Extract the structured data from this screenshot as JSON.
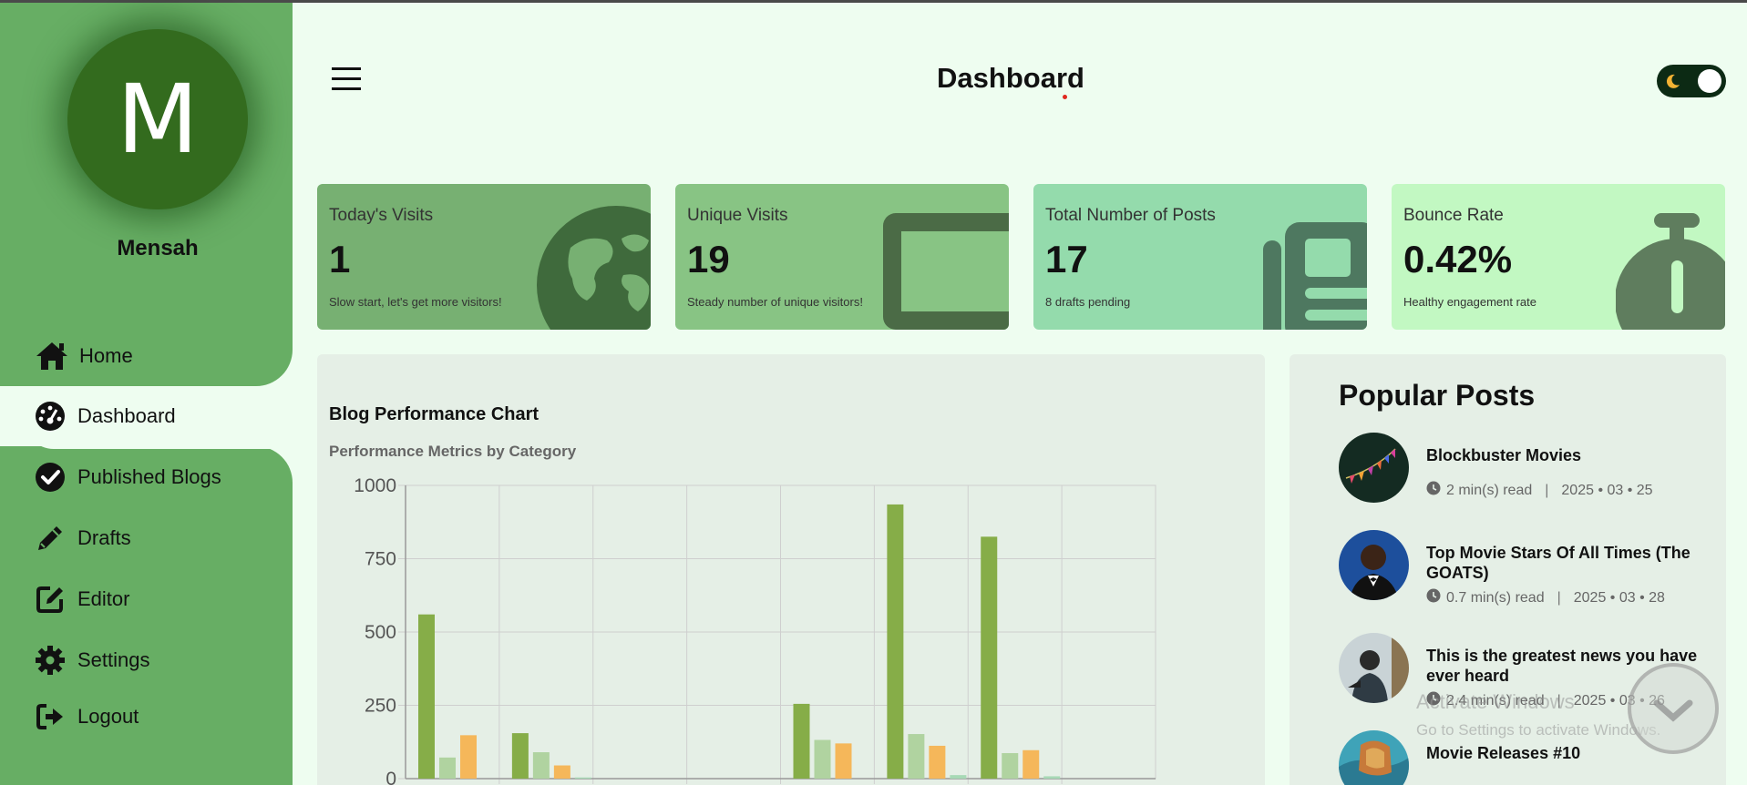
{
  "user": {
    "initial": "M",
    "name": "Mensah"
  },
  "nav": [
    {
      "label": "Home",
      "icon": "home-icon"
    },
    {
      "label": "Dashboard",
      "icon": "dashboard-gauge-icon",
      "active": true
    },
    {
      "label": "Published Blogs",
      "icon": "check-circle-icon"
    },
    {
      "label": "Drafts",
      "icon": "pencil-icon"
    },
    {
      "label": "Editor",
      "icon": "edit-square-icon"
    },
    {
      "label": "Settings",
      "icon": "gear-icon"
    },
    {
      "label": "Logout",
      "icon": "logout-icon"
    }
  ],
  "header": {
    "title": "Dashboard",
    "theme_toggle": "dark-mode-toggle"
  },
  "cards": [
    {
      "label": "Today's Visits",
      "value": "1",
      "note": "Slow start, let's get more visitors!",
      "icon": "globe-icon",
      "color": "#77b072"
    },
    {
      "label": "Unique Visits",
      "value": "19",
      "note": "Steady number of unique visitors!",
      "icon": "tablet-icon",
      "color": "#88c484"
    },
    {
      "label": "Total Number of Posts",
      "value": "17",
      "note": "8 drafts pending",
      "icon": "newspaper-icon",
      "color": "#94dbac"
    },
    {
      "label": "Bounce Rate",
      "value": "0.42%",
      "note": "Healthy engagement rate",
      "icon": "stopwatch-icon",
      "color": "#c2f8c2"
    }
  ],
  "chart": {
    "title": "Blog Performance Chart",
    "subtitle": "Performance Metrics by Category"
  },
  "chart_data": {
    "type": "bar",
    "title": "Blog Performance Chart",
    "subtitle": "Performance Metrics by Category",
    "ylim": [
      0,
      1000
    ],
    "yticks": [
      0,
      250,
      500,
      750,
      1000
    ],
    "categories": [
      "",
      "",
      "",
      "",
      "",
      "",
      "",
      ""
    ],
    "series": [
      {
        "values": [
          560,
          155,
          0,
          0,
          255,
          935,
          825,
          0
        ],
        "color": "#86ad48"
      },
      {
        "values": [
          72,
          90,
          0,
          0,
          132,
          152,
          87,
          0
        ],
        "color": "#b0d3a0"
      },
      {
        "values": [
          148,
          45,
          0,
          0,
          120,
          112,
          97,
          0
        ],
        "color": "#f5b75a"
      },
      {
        "values": [
          0,
          4,
          0,
          0,
          0,
          12,
          8,
          0
        ],
        "color": "#a7d9b5"
      }
    ],
    "grid": true
  },
  "popular": {
    "title": "Popular Posts",
    "posts": [
      {
        "title": "Blockbuster Movies",
        "read": "2 min(s) read",
        "date": "2025 • 03 • 25"
      },
      {
        "title": "Top Movie Stars Of All Times (The GOATS)",
        "read": "0.7 min(s) read",
        "date": "2025 • 03 • 28"
      },
      {
        "title": "This is the greatest news you have ever heard",
        "read": "2.4 min(s) read",
        "date": "2025 • 03 • 26"
      },
      {
        "title": "Movie Releases #10",
        "read": "",
        "date": ""
      }
    ]
  },
  "watermark": {
    "line1": "Activate Windows",
    "line2": "Go to Settings to activate Windows."
  }
}
